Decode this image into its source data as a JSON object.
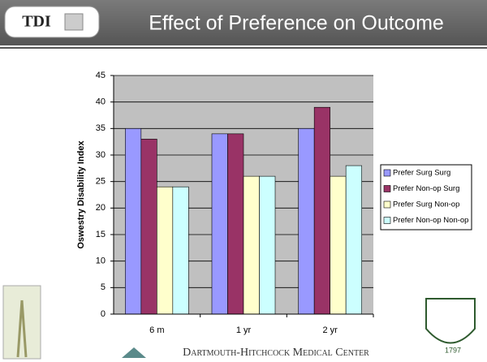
{
  "header": {
    "logo": "TDI"
  },
  "footer": {
    "institution": "Dartmouth-Hitchcock Medical Center",
    "seal_year": "1797"
  },
  "chart_data": {
    "type": "bar",
    "title": "Effect of Preference on Outcome",
    "y_label": "Oswestry Disability Index",
    "categories": [
      "6 m",
      "1 yr",
      "2 yr"
    ],
    "series": [
      {
        "name": "Prefer Surg Surg",
        "color": "#9999ff",
        "values": [
          35,
          34,
          35
        ]
      },
      {
        "name": "Prefer Non-op Surg",
        "color": "#993366",
        "values": [
          33,
          34,
          39
        ]
      },
      {
        "name": "Prefer Surg Non-op",
        "color": "#ffffcc",
        "values": [
          24,
          26,
          26
        ]
      },
      {
        "name": "Prefer Non-op Non-op",
        "color": "#ccffff",
        "values": [
          24,
          26,
          28
        ]
      }
    ],
    "ylim": [
      0,
      45
    ],
    "yticks": [
      0,
      5,
      10,
      15,
      20,
      25,
      30,
      35,
      40,
      45
    ],
    "grid": true,
    "legend": "right"
  }
}
